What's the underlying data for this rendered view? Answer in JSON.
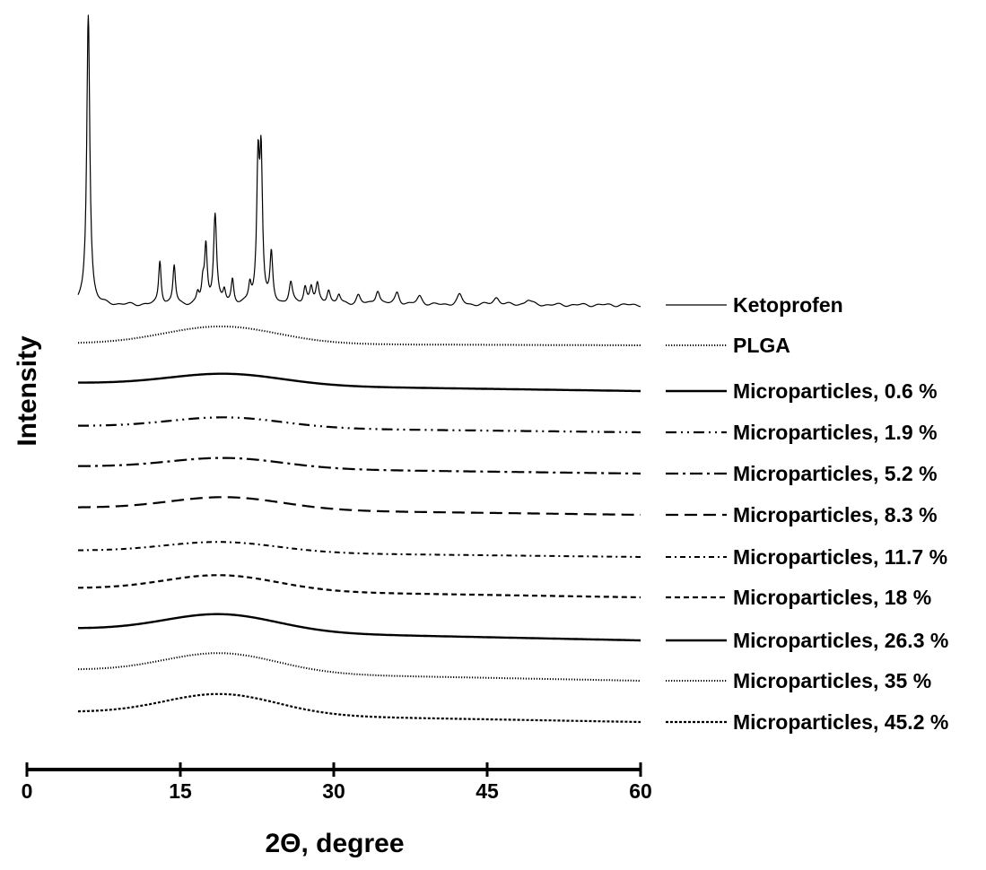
{
  "chart_data": {
    "type": "line",
    "xlabel": "2Θ,  degree",
    "ylabel": "Intensity",
    "xlim": [
      0,
      60
    ],
    "x_ticks": [
      0,
      15,
      30,
      45,
      60
    ],
    "x_range_data": [
      5,
      60
    ],
    "legend_position": "right",
    "series": [
      {
        "name": "Ketoprofen",
        "style": "solid-thin",
        "color": "#000000",
        "peaks": [
          {
            "x": 6.0,
            "height": 12.0,
            "width": 0.18
          },
          {
            "x": 13.0,
            "height": 1.8,
            "width": 0.15
          },
          {
            "x": 14.4,
            "height": 1.6,
            "width": 0.15
          },
          {
            "x": 16.7,
            "height": 0.4,
            "width": 0.15
          },
          {
            "x": 17.2,
            "height": 0.8,
            "width": 0.15
          },
          {
            "x": 17.5,
            "height": 2.3,
            "width": 0.15
          },
          {
            "x": 18.4,
            "height": 3.7,
            "width": 0.18
          },
          {
            "x": 19.3,
            "height": 0.5,
            "width": 0.15
          },
          {
            "x": 20.1,
            "height": 1.0,
            "width": 0.15
          },
          {
            "x": 21.8,
            "height": 0.7,
            "width": 0.15
          },
          {
            "x": 22.6,
            "height": 5.5,
            "width": 0.16
          },
          {
            "x": 22.9,
            "height": 5.7,
            "width": 0.16
          },
          {
            "x": 23.9,
            "height": 2.0,
            "width": 0.16
          },
          {
            "x": 25.8,
            "height": 0.9,
            "width": 0.2
          },
          {
            "x": 27.2,
            "height": 0.7,
            "width": 0.18
          },
          {
            "x": 27.8,
            "height": 0.7,
            "width": 0.18
          },
          {
            "x": 28.4,
            "height": 0.8,
            "width": 0.18
          },
          {
            "x": 29.5,
            "height": 0.6,
            "width": 0.2
          },
          {
            "x": 30.5,
            "height": 0.4,
            "width": 0.2
          },
          {
            "x": 32.4,
            "height": 0.4,
            "width": 0.25
          },
          {
            "x": 34.3,
            "height": 0.6,
            "width": 0.25
          },
          {
            "x": 36.2,
            "height": 0.5,
            "width": 0.25
          },
          {
            "x": 38.4,
            "height": 0.35,
            "width": 0.3
          },
          {
            "x": 42.3,
            "height": 0.4,
            "width": 0.3
          },
          {
            "x": 45.9,
            "height": 0.3,
            "width": 0.35
          },
          {
            "x": 49.0,
            "height": 0.2,
            "width": 0.35
          }
        ]
      },
      {
        "name": "PLGA",
        "style": "dotted",
        "color": "#000000",
        "hump": {
          "center": 19,
          "height": 0.85,
          "width": 5.5
        }
      },
      {
        "name": "Microparticles, 0.6 %",
        "style": "solid",
        "color": "#000000",
        "hump": {
          "center": 19.5,
          "height": 0.55,
          "width": 5.5
        }
      },
      {
        "name": "Microparticles, 1.9 %",
        "style": "dash-dot-dot",
        "color": "#000000",
        "hump": {
          "center": 19.5,
          "height": 0.5,
          "width": 5.5
        }
      },
      {
        "name": "Microparticles, 5.2 %",
        "style": "dash-dot",
        "color": "#000000",
        "hump": {
          "center": 19.5,
          "height": 0.5,
          "width": 5.5
        }
      },
      {
        "name": "Microparticles, 8.3 %",
        "style": "long-dash",
        "color": "#000000",
        "hump": {
          "center": 19.5,
          "height": 0.6,
          "width": 5.5
        }
      },
      {
        "name": "Microparticles, 11.7 %",
        "style": "dash-dot-fine",
        "color": "#000000",
        "hump": {
          "center": 19.0,
          "height": 0.5,
          "width": 5.5
        }
      },
      {
        "name": "Microparticles, 18 %",
        "style": "dashed",
        "color": "#000000",
        "hump": {
          "center": 19.0,
          "height": 0.75,
          "width": 5.5
        }
      },
      {
        "name": "Microparticles, 26.3 %",
        "style": "solid-thick",
        "color": "#000000",
        "hump": {
          "center": 19.0,
          "height": 0.85,
          "width": 5.5
        }
      },
      {
        "name": "Microparticles, 35 %",
        "style": "dotted",
        "color": "#000000",
        "hump": {
          "center": 19.0,
          "height": 0.95,
          "width": 5.5
        }
      },
      {
        "name": "Microparticles, 45.2 %",
        "style": "short-dash",
        "color": "#000000",
        "hump": {
          "center": 19.0,
          "height": 1.0,
          "width": 5.5
        }
      }
    ]
  }
}
